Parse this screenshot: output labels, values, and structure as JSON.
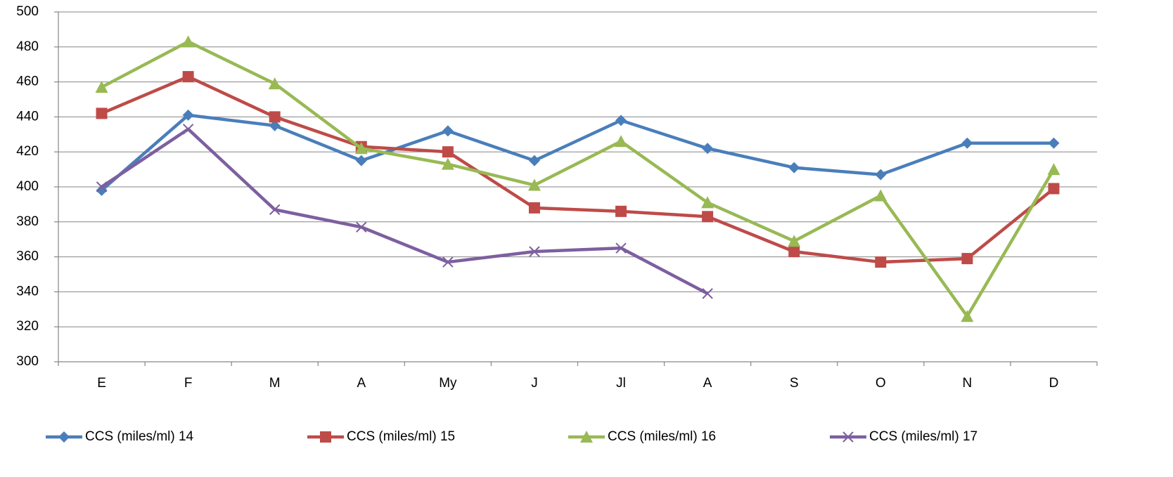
{
  "chart_data": {
    "type": "line",
    "categories": [
      "E",
      "F",
      "M",
      "A",
      "My",
      "J",
      "Jl",
      "A",
      "S",
      "O",
      "N",
      "D"
    ],
    "series": [
      {
        "name": "CCS (miles/ml) 14",
        "color": "#4a7ebb",
        "marker": "diamond",
        "values": [
          398,
          441,
          435,
          415,
          432,
          415,
          438,
          422,
          411,
          407,
          425,
          425
        ]
      },
      {
        "name": "CCS (miles/ml) 15",
        "color": "#be4b48",
        "marker": "square",
        "values": [
          442,
          463,
          440,
          423,
          420,
          388,
          386,
          383,
          363,
          357,
          359,
          399
        ]
      },
      {
        "name": "CCS (miles/ml) 16",
        "color": "#98b954",
        "marker": "triangle",
        "values": [
          457,
          483,
          459,
          422,
          413,
          401,
          426,
          391,
          369,
          395,
          326,
          410
        ]
      },
      {
        "name": "CCS (miles/ml) 17",
        "color": "#7d5fa0",
        "marker": "x",
        "values": [
          400,
          433,
          387,
          377,
          357,
          363,
          365,
          339,
          null,
          null,
          null,
          null
        ]
      }
    ],
    "ylim": [
      300,
      500
    ],
    "yticks": [
      300,
      320,
      340,
      360,
      380,
      400,
      420,
      440,
      460,
      480,
      500
    ],
    "grid": true,
    "legend": "bottom"
  }
}
